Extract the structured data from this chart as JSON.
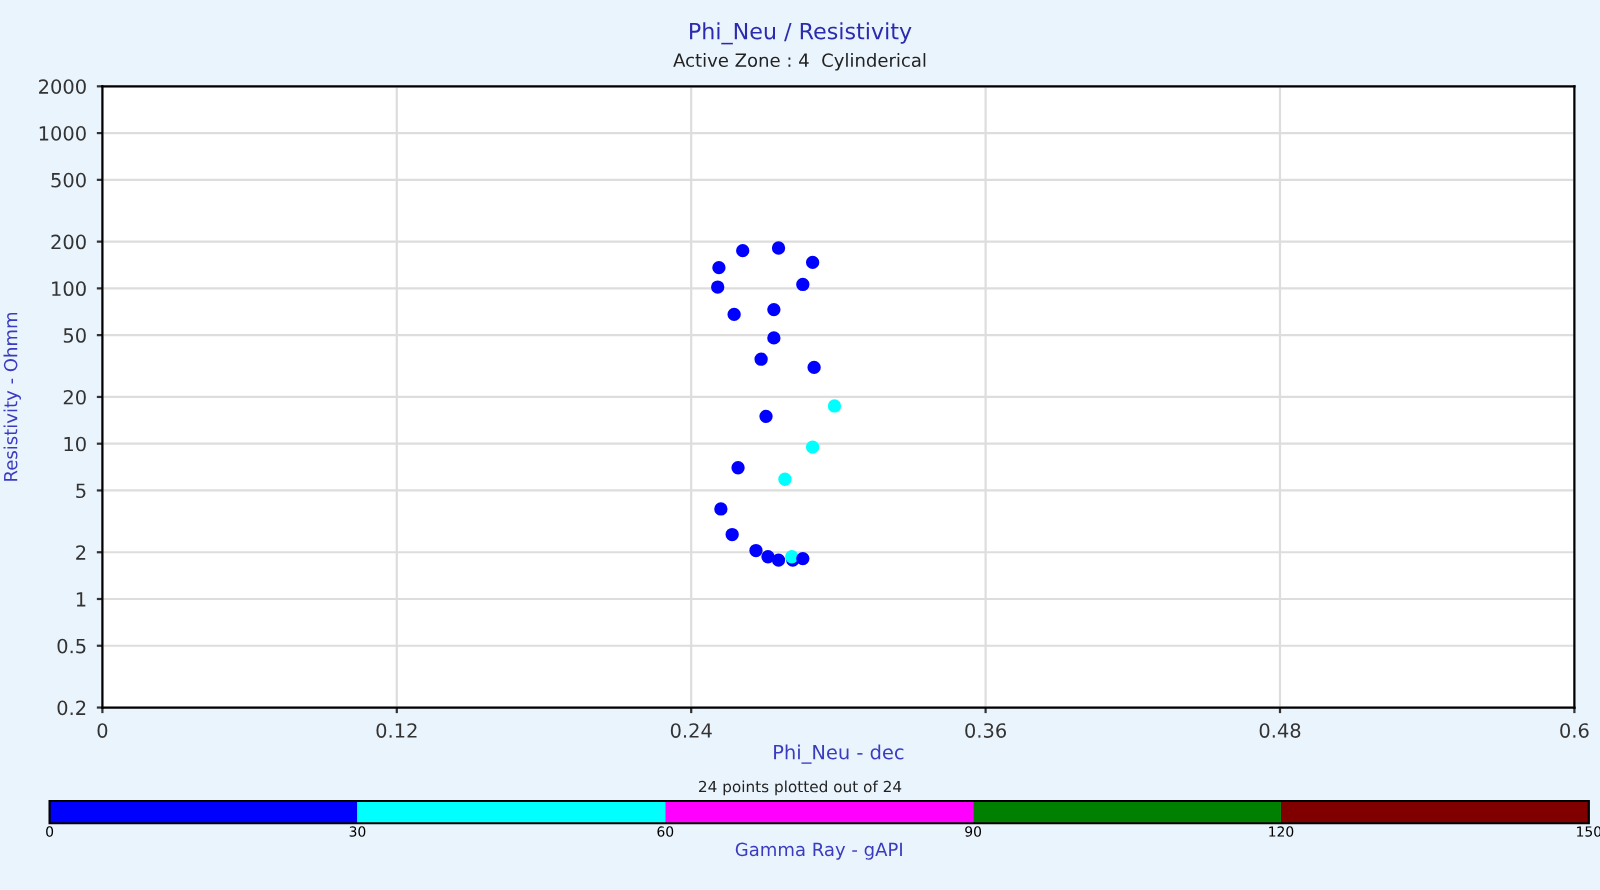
{
  "chart_data": {
    "type": "scatter",
    "title": "Phi_Neu / Resistivity",
    "subtitle": "Active Zone : 4  Cylinderical",
    "xlabel": "Phi_Neu - dec",
    "ylabel": "Resistivity - Ohmm",
    "clabel": "Gamma Ray - gAPI",
    "annotations": [
      "24 points plotted out of 24"
    ],
    "log": "y",
    "grid": true,
    "marker": "circle",
    "xlim": [
      0,
      0.6
    ],
    "xticks": [
      0,
      0.12,
      0.24,
      0.36,
      0.48,
      0.6
    ],
    "ylim": [
      0.2,
      2000
    ],
    "yticks": [
      0.2,
      0.5,
      1,
      2,
      5,
      10,
      20,
      50,
      100,
      200,
      500,
      1000,
      2000
    ],
    "clim": [
      0,
      150
    ],
    "cticks": [
      0,
      30,
      60,
      90,
      120,
      150
    ],
    "colors": [
      "#0000ff",
      "#00ffff",
      "#ff00ff",
      "#008000",
      "#800000"
    ],
    "series": [
      {
        "x": [
          0.261,
          0.2756,
          0.2895,
          0.2513,
          0.2508,
          0.2855,
          0.2575,
          0.2737,
          0.2737,
          0.2685,
          0.2901,
          0.2984,
          0.2705,
          0.2895,
          0.2591,
          0.2782,
          0.2521,
          0.2567,
          0.2664,
          0.2713,
          0.2756,
          0.2814,
          0.281,
          0.2855
        ],
        "values": [
          175,
          182,
          147,
          136,
          102,
          106,
          68,
          73,
          48,
          35,
          31,
          17.5,
          15,
          9.5,
          7.0,
          5.9,
          3.8,
          2.6,
          2.05,
          1.87,
          1.78,
          1.78,
          1.87,
          1.82
        ],
        "colors": [
          "#0000ff",
          "#0000ff",
          "#0000ff",
          "#0000ff",
          "#0000ff",
          "#0000ff",
          "#0000ff",
          "#0000ff",
          "#0000ff",
          "#0000ff",
          "#0000ff",
          "#00ffff",
          "#0000ff",
          "#00ffff",
          "#0000ff",
          "#00ffff",
          "#0000ff",
          "#0000ff",
          "#0000ff",
          "#0000ff",
          "#0000ff",
          "#0000ff",
          "#00ffff",
          "#0000ff"
        ]
      }
    ]
  }
}
